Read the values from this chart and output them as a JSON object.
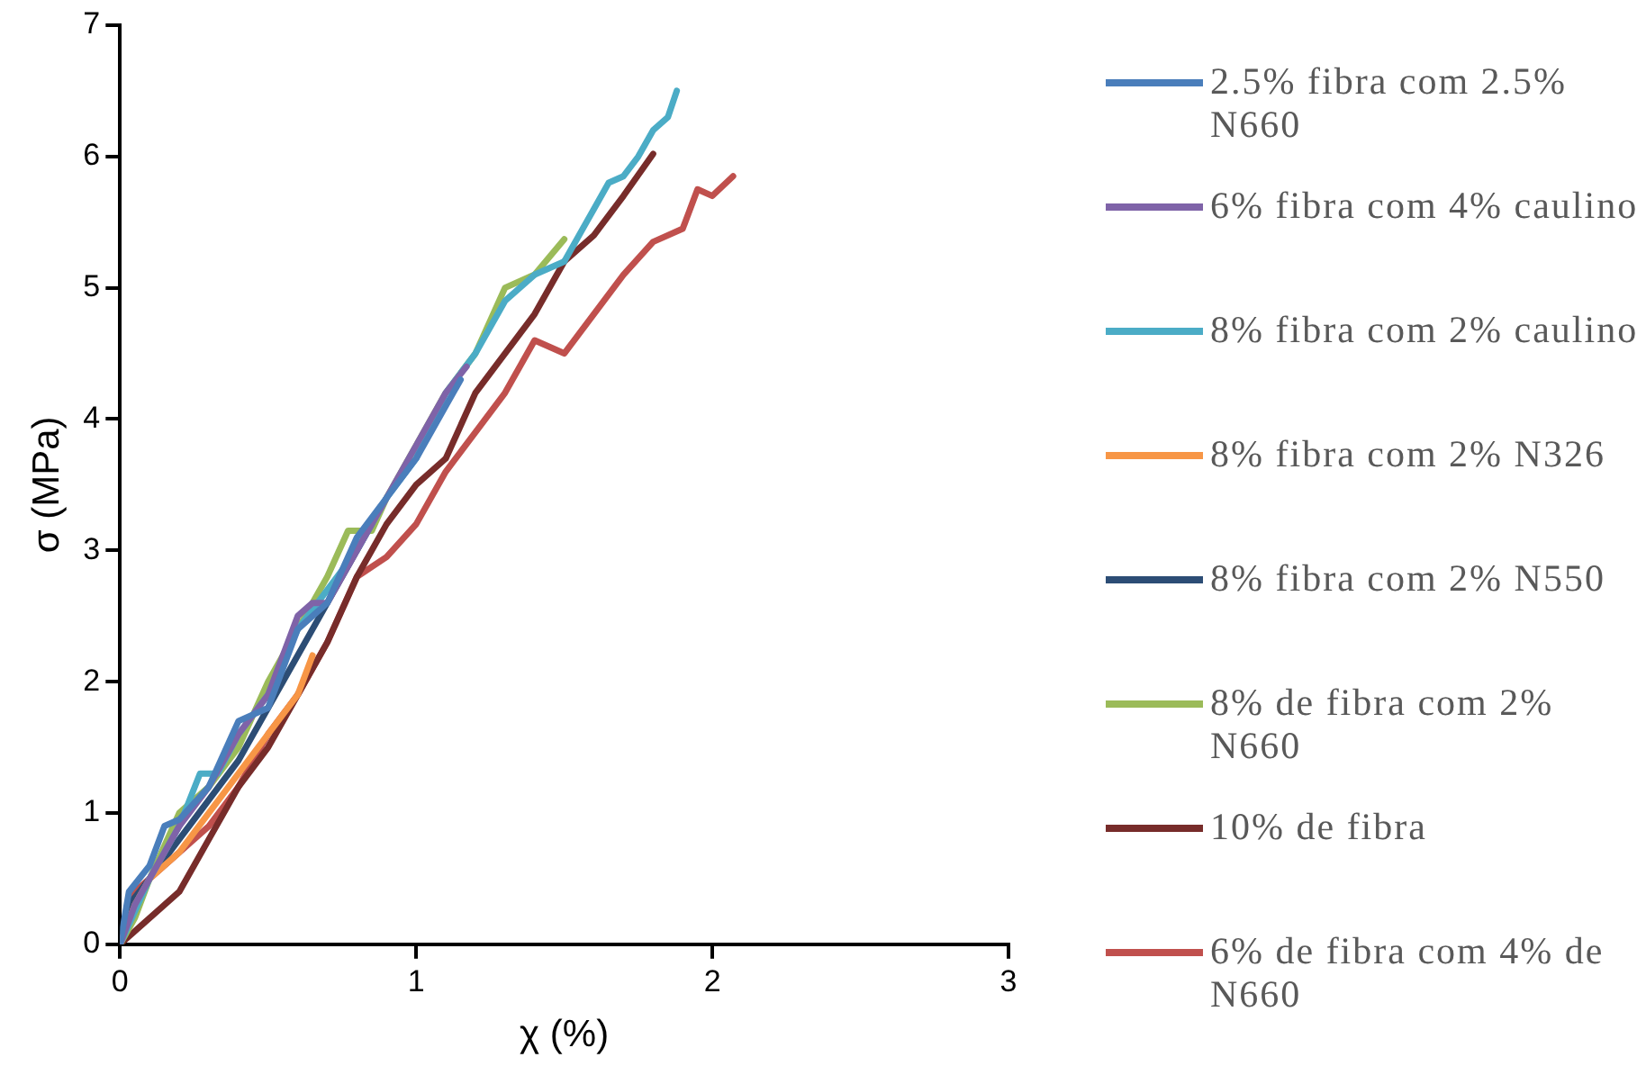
{
  "chart_data": {
    "type": "line",
    "xlabel": "χ (%)",
    "ylabel": "σ (MPa)",
    "xlim": [
      0,
      3
    ],
    "xticks": [
      0,
      1,
      2,
      3
    ],
    "ylim": [
      0,
      7
    ],
    "yticks": [
      0,
      1,
      2,
      3,
      4,
      5,
      6,
      7
    ],
    "grid": false,
    "legend": "right",
    "marker": "none",
    "line_style": "solid",
    "series": [
      {
        "name": "2.5% fibra com 2.5% N660",
        "color": "#4a7ebb",
        "x": [
          0,
          0.03,
          0.1,
          0.15,
          0.2,
          0.3,
          0.4,
          0.5,
          0.6,
          0.7,
          0.8,
          0.9,
          1.0,
          1.1,
          1.15
        ],
        "values": [
          0,
          0.4,
          0.6,
          0.9,
          0.95,
          1.2,
          1.7,
          1.8,
          2.4,
          2.6,
          3.1,
          3.4,
          3.7,
          4.1,
          4.3
        ]
      },
      {
        "name": "6% fibra com 4% caulino",
        "color": "#7f63a8",
        "x": [
          0,
          0.05,
          0.1,
          0.2,
          0.3,
          0.4,
          0.5,
          0.6,
          0.65,
          0.7,
          0.8,
          0.9,
          1.0,
          1.1,
          1.17
        ],
        "values": [
          0,
          0.3,
          0.5,
          0.9,
          1.2,
          1.6,
          1.9,
          2.5,
          2.6,
          2.6,
          3.0,
          3.4,
          3.8,
          4.2,
          4.4
        ]
      },
      {
        "name": "8% fibra com 2% caulino",
        "color": "#4bacc6",
        "x": [
          0,
          0.1,
          0.2,
          0.27,
          0.33,
          0.4,
          0.5,
          0.6,
          0.7,
          0.8,
          0.9,
          1.0,
          1.1,
          1.2,
          1.3,
          1.4,
          1.5,
          1.6,
          1.65,
          1.7,
          1.75,
          1.8,
          1.85,
          1.88
        ],
        "values": [
          0,
          0.5,
          0.9,
          1.3,
          1.3,
          1.6,
          1.9,
          2.4,
          2.7,
          3.0,
          3.4,
          3.7,
          4.2,
          4.5,
          4.9,
          5.1,
          5.2,
          5.6,
          5.8,
          5.85,
          6.0,
          6.2,
          6.3,
          6.5
        ]
      },
      {
        "name": "8% fibra com 2% N326",
        "color": "#f79646",
        "x": [
          0,
          0.05,
          0.1,
          0.2,
          0.3,
          0.4,
          0.5,
          0.6,
          0.65
        ],
        "values": [
          0,
          0.3,
          0.5,
          0.7,
          1.0,
          1.3,
          1.6,
          1.9,
          2.2
        ]
      },
      {
        "name": "8% fibra com 2% N550",
        "color": "#2c4d75",
        "x": [
          0,
          0.03,
          0.1,
          0.2,
          0.3,
          0.4,
          0.5,
          0.6,
          0.7,
          0.8,
          0.85
        ],
        "values": [
          0,
          0.3,
          0.5,
          0.8,
          1.1,
          1.4,
          1.8,
          2.2,
          2.6,
          3.0,
          3.2
        ]
      },
      {
        "name": "8% de fibra com 2% N660",
        "color": "#9bbb59",
        "x": [
          0,
          0.05,
          0.1,
          0.2,
          0.3,
          0.4,
          0.5,
          0.6,
          0.7,
          0.77,
          0.85,
          0.9,
          1.0,
          1.1,
          1.2,
          1.3,
          1.4,
          1.5
        ],
        "values": [
          0,
          0.2,
          0.5,
          1.0,
          1.2,
          1.5,
          2.0,
          2.4,
          2.8,
          3.15,
          3.15,
          3.4,
          3.8,
          4.2,
          4.5,
          5.0,
          5.1,
          5.37
        ]
      },
      {
        "name": "10% de fibra",
        "color": "#772c2a",
        "x": [
          0,
          0.2,
          0.3,
          0.4,
          0.5,
          0.6,
          0.7,
          0.8,
          0.9,
          1.0,
          1.1,
          1.2,
          1.3,
          1.4,
          1.5,
          1.6,
          1.7,
          1.8
        ],
        "values": [
          0,
          0.4,
          0.8,
          1.2,
          1.5,
          1.9,
          2.3,
          2.8,
          3.2,
          3.5,
          3.7,
          4.2,
          4.5,
          4.8,
          5.2,
          5.4,
          5.7,
          6.02
        ]
      },
      {
        "name": "6% de fibra com 4% de N660",
        "color": "#c0504d",
        "x": [
          0,
          0.05,
          0.15,
          0.3,
          0.4,
          0.5,
          0.6,
          0.7,
          0.8,
          0.9,
          1.0,
          1.1,
          1.2,
          1.3,
          1.4,
          1.5,
          1.6,
          1.7,
          1.8,
          1.9,
          1.95,
          2.0,
          2.07
        ],
        "values": [
          0,
          0.4,
          0.6,
          0.9,
          1.2,
          1.6,
          1.9,
          2.3,
          2.8,
          2.95,
          3.2,
          3.6,
          3.9,
          4.2,
          4.6,
          4.5,
          4.8,
          5.1,
          5.35,
          5.45,
          5.75,
          5.7,
          5.85
        ]
      }
    ]
  }
}
